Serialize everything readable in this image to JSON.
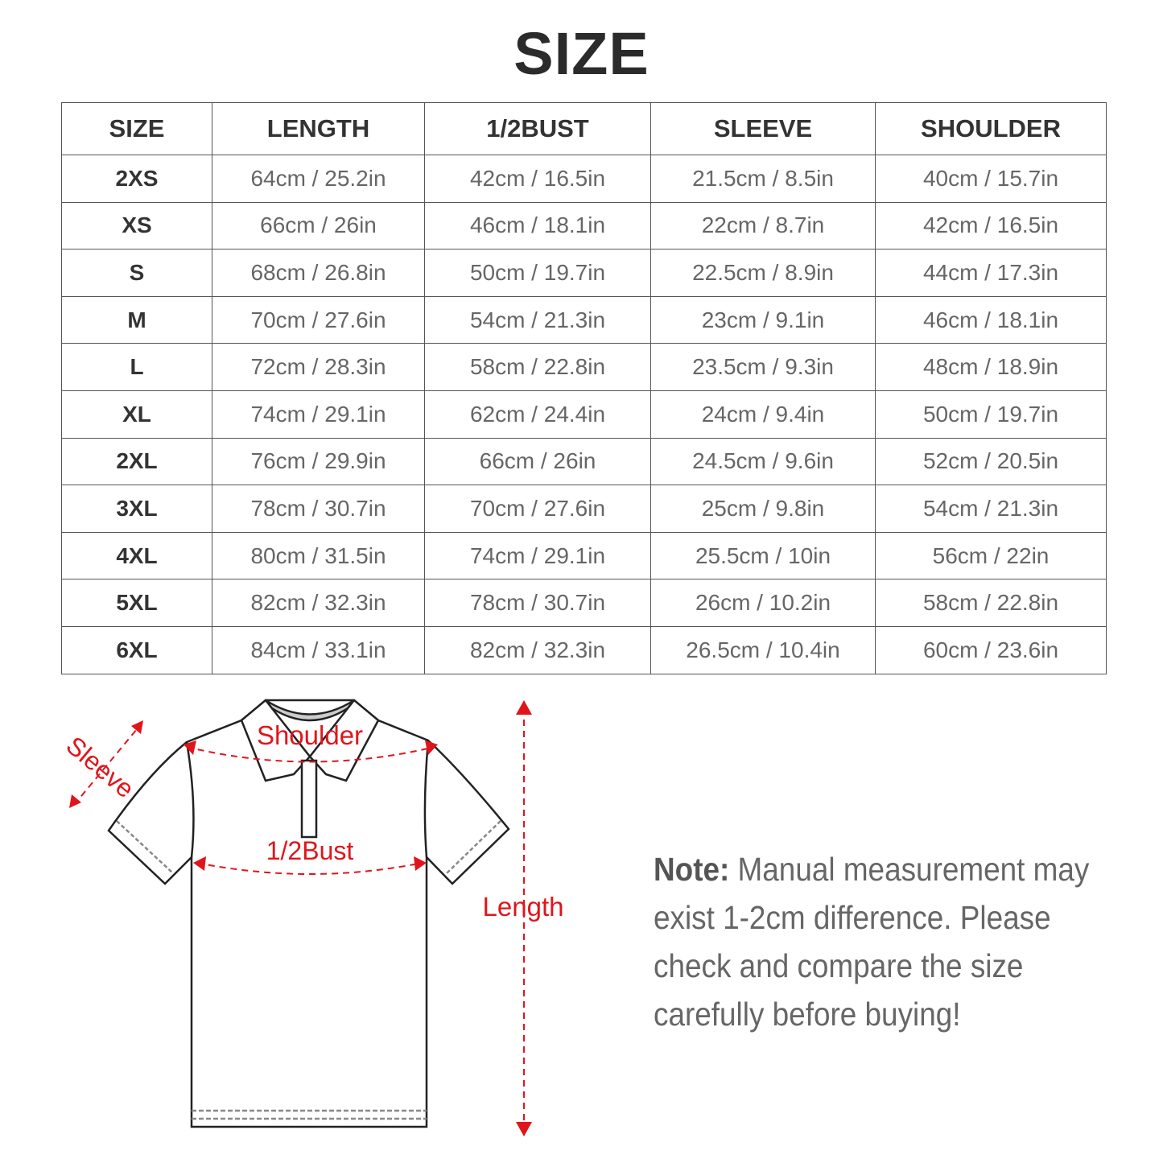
{
  "title": "SIZE",
  "table": {
    "headers": [
      "SIZE",
      "LENGTH",
      "1/2BUST",
      "SLEEVE",
      "SHOULDER"
    ],
    "rows": [
      [
        "2XS",
        "64cm / 25.2in",
        "42cm / 16.5in",
        "21.5cm / 8.5in",
        "40cm / 15.7in"
      ],
      [
        "XS",
        "66cm / 26in",
        "46cm / 18.1in",
        "22cm / 8.7in",
        "42cm / 16.5in"
      ],
      [
        "S",
        "68cm / 26.8in",
        "50cm / 19.7in",
        "22.5cm / 8.9in",
        "44cm / 17.3in"
      ],
      [
        "M",
        "70cm / 27.6in",
        "54cm / 21.3in",
        "23cm / 9.1in",
        "46cm / 18.1in"
      ],
      [
        "L",
        "72cm / 28.3in",
        "58cm / 22.8in",
        "23.5cm / 9.3in",
        "48cm / 18.9in"
      ],
      [
        "XL",
        "74cm / 29.1in",
        "62cm / 24.4in",
        "24cm / 9.4in",
        "50cm / 19.7in"
      ],
      [
        "2XL",
        "76cm / 29.9in",
        "66cm / 26in",
        "24.5cm / 9.6in",
        "52cm / 20.5in"
      ],
      [
        "3XL",
        "78cm / 30.7in",
        "70cm / 27.6in",
        "25cm / 9.8in",
        "54cm / 21.3in"
      ],
      [
        "4XL",
        "80cm / 31.5in",
        "74cm / 29.1in",
        "25.5cm / 10in",
        "56cm / 22in"
      ],
      [
        "5XL",
        "82cm / 32.3in",
        "78cm / 30.7in",
        "26cm / 10.2in",
        "58cm / 22.8in"
      ],
      [
        "6XL",
        "84cm / 33.1in",
        "82cm / 32.3in",
        "26.5cm / 10.4in",
        "60cm / 23.6in"
      ]
    ]
  },
  "diagram": {
    "labels": {
      "sleeve": "Sleeve",
      "shoulder": "Shoulder",
      "bust": "1/2Bust",
      "length": "Length"
    },
    "accent_color": "#e0151b"
  },
  "note": {
    "label": "Note:",
    "text": " Manual measurement may exist 1-2cm difference. Please check and compare the size carefully before buying!"
  }
}
